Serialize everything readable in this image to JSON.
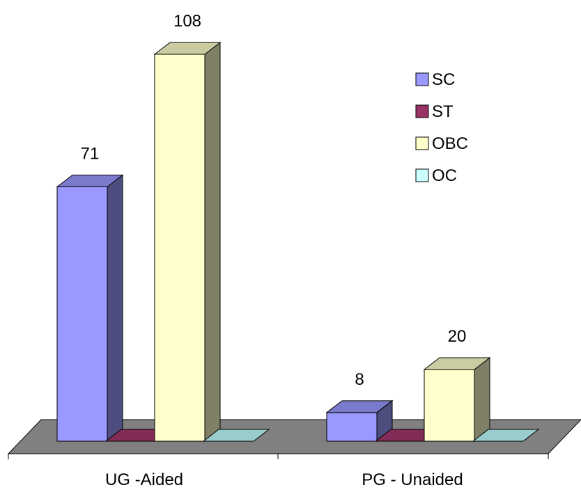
{
  "chart_data": {
    "type": "bar",
    "style": "3d-clustered-column",
    "categories": [
      "UG -Aided",
      "PG - Unaided"
    ],
    "series": [
      {
        "name": "SC",
        "values": [
          71,
          8
        ],
        "color": "#9999ff"
      },
      {
        "name": "ST",
        "values": [
          0,
          0
        ],
        "color": "#993366"
      },
      {
        "name": "OBC",
        "values": [
          108,
          20
        ],
        "color": "#ffffcc"
      },
      {
        "name": "OC",
        "values": [
          0,
          0
        ],
        "color": "#ccffff"
      }
    ],
    "data_labels": [
      {
        "series": "SC",
        "category": "UG -Aided",
        "text": "71"
      },
      {
        "series": "OBC",
        "category": "UG -Aided",
        "text": "108"
      },
      {
        "series": "SC",
        "category": "PG - Unaided",
        "text": "8"
      },
      {
        "series": "OBC",
        "category": "PG - Unaided",
        "text": "20"
      }
    ],
    "title": "",
    "xlabel": "",
    "ylabel": "",
    "ylim": [
      0,
      110
    ],
    "grid": false,
    "legend_position": "top-right",
    "floor_color": "#808080"
  }
}
